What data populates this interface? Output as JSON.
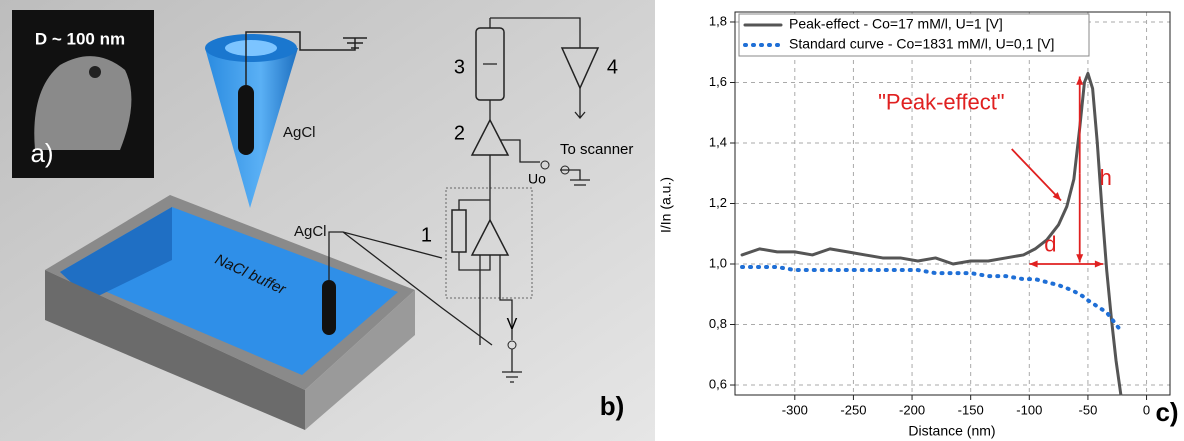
{
  "diagram": {
    "inset_label": "D ~ 100 nm",
    "panel_a": "a)",
    "agcl_top": "AgCl",
    "agcl_bath": "AgCl",
    "bath": "NaCl buffer",
    "block_1": "1",
    "block_2": "2",
    "block_3": "3",
    "block_4": "4",
    "scanner": "To scanner",
    "uo": "Uo",
    "v": "V",
    "panel_b": "b)"
  },
  "chart_data": {
    "type": "line",
    "panel_label": "c)",
    "x_label": "Distance (nm)",
    "y_label": "I/In (a.u.)",
    "annotations": {
      "peak": "\"Peak-effect\"",
      "h": "h",
      "d": "d"
    },
    "x": [
      -345,
      -330,
      -315,
      -300,
      -285,
      -270,
      -255,
      -240,
      -225,
      -210,
      -195,
      -180,
      -165,
      -150,
      -135,
      -120,
      -105,
      -95,
      -85,
      -75,
      -68,
      -62,
      -57,
      -53,
      -50,
      -46,
      -42,
      -38,
      -34,
      -30,
      -26,
      -22
    ],
    "series": [
      {
        "name": "Peak-effect - Co=17 mM/l, U=1 [V]",
        "color": "#555555",
        "style": "solid",
        "values": [
          1.03,
          1.05,
          1.04,
          1.04,
          1.03,
          1.05,
          1.04,
          1.03,
          1.02,
          1.02,
          1.01,
          1.02,
          1.0,
          1.01,
          1.01,
          1.02,
          1.03,
          1.05,
          1.08,
          1.13,
          1.19,
          1.28,
          1.45,
          1.6,
          1.63,
          1.58,
          1.4,
          1.18,
          0.98,
          0.82,
          0.68,
          0.57
        ]
      },
      {
        "name": "Standard curve - Co=1831 mM/l, U=0,1 [V]",
        "color": "#1f6fd6",
        "style": "dotted",
        "values": [
          0.99,
          0.99,
          0.99,
          0.98,
          0.98,
          0.98,
          0.98,
          0.98,
          0.98,
          0.98,
          0.98,
          0.97,
          0.97,
          0.97,
          0.96,
          0.96,
          0.95,
          0.95,
          0.94,
          0.93,
          0.92,
          0.91,
          0.9,
          0.89,
          0.88,
          0.87,
          0.86,
          0.85,
          0.84,
          0.82,
          0.8,
          0.78
        ]
      }
    ],
    "xlim": [
      -351,
      20
    ],
    "ylim": [
      0.567,
      1.833
    ],
    "xticks": [
      -300,
      -250,
      -200,
      -150,
      -100,
      -50,
      0
    ],
    "yticks": [
      {
        "value": 0.6,
        "label": "0,6"
      },
      {
        "value": 0.8,
        "label": "0,8"
      },
      {
        "value": 1.0,
        "label": "1,0"
      },
      {
        "value": 1.2,
        "label": "1,2"
      },
      {
        "value": 1.4,
        "label": "1,4"
      },
      {
        "value": 1.6,
        "label": "1,6"
      },
      {
        "value": 1.8,
        "label": "1,8"
      }
    ],
    "grid": true,
    "legend": "top-left"
  }
}
